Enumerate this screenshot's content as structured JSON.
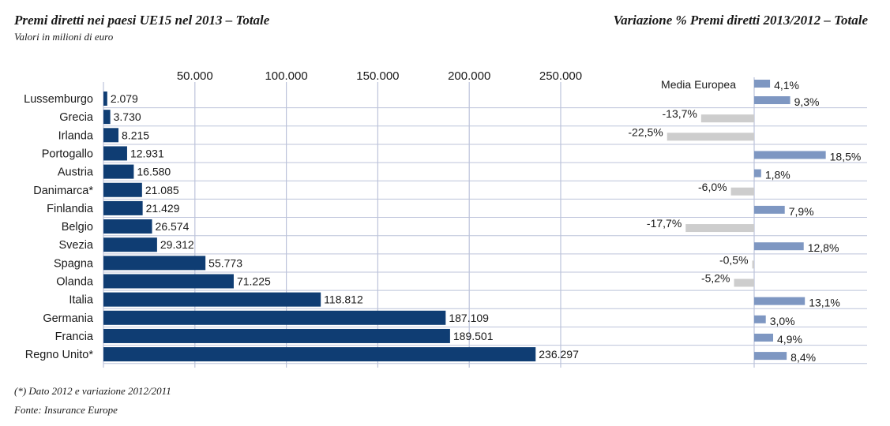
{
  "left_title": "Premi diretti nei paesi UE15 nel 2013 – Totale",
  "left_subtitle": "Valori in milioni di euro",
  "right_title": "Variazione % Premi diretti 2013/2012 – Totale",
  "footnote": "(*) Dato 2012 e variazione 2012/2011",
  "source": "Fonte: Insurance Europe",
  "colors": {
    "bar": "#0f3d73",
    "positive": "#7e97c2",
    "negative": "#cdcdcd",
    "grid": "#bcc3da"
  },
  "chart_data": [
    {
      "type": "bar",
      "orientation": "horizontal",
      "title": "Premi diretti nei paesi UE15 nel 2013 – Totale",
      "subtitle": "Valori in milioni di euro",
      "x_ticks": [
        50000,
        100000,
        150000,
        200000,
        250000
      ],
      "x_tick_labels": [
        "50.000",
        "100.000",
        "150.000",
        "200.000",
        "250.000"
      ],
      "xlim": [
        0,
        280000
      ],
      "categories": [
        "Lussemburgo",
        "Grecia",
        "Irlanda",
        "Portogallo",
        "Austria",
        "Danimarca*",
        "Finlandia",
        "Belgio",
        "Svezia",
        "Spagna",
        "Olanda",
        "Italia",
        "Germania",
        "Francia",
        "Regno Unito*"
      ],
      "values": [
        2079,
        3730,
        8215,
        12931,
        16580,
        21085,
        21429,
        26574,
        29312,
        55773,
        71225,
        118812,
        187109,
        189501,
        236297
      ],
      "value_labels": [
        "2.079",
        "3.730",
        "8.215",
        "12.931",
        "16.580",
        "21.085",
        "21.429",
        "26.574",
        "29.312",
        "55.773",
        "71.225",
        "118.812",
        "187.109",
        "189.501",
        "236.297"
      ],
      "grid": true
    },
    {
      "type": "bar",
      "orientation": "horizontal",
      "title": "Variazione % Premi diretti 2013/2012 – Totale",
      "reference": {
        "label": "Media Europea",
        "value": 4.1,
        "value_label": "4,1%"
      },
      "categories": [
        "Lussemburgo",
        "Grecia",
        "Irlanda",
        "Portogallo",
        "Austria",
        "Danimarca*",
        "Finlandia",
        "Belgio",
        "Svezia",
        "Spagna",
        "Olanda",
        "Italia",
        "Germania",
        "Francia",
        "Regno Unito*"
      ],
      "values": [
        9.3,
        -13.7,
        -22.5,
        18.5,
        1.8,
        -6.0,
        7.9,
        -17.7,
        12.8,
        -0.5,
        -5.2,
        13.1,
        3.0,
        4.9,
        8.4
      ],
      "value_labels": [
        "9,3%",
        "-13,7%",
        "-22,5%",
        "18,5%",
        "1,8%",
        "-6,0%",
        "7,9%",
        "-17,7%",
        "12,8%",
        "-0,5%",
        "-5,2%",
        "13,1%",
        "3,0%",
        "4,9%",
        "8,4%"
      ],
      "grid": true
    }
  ]
}
